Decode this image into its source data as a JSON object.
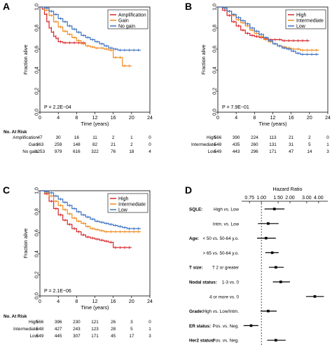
{
  "colors": {
    "red": "#d7262b",
    "orange": "#f08a1e",
    "blue": "#3f73c0",
    "black": "#000000"
  },
  "panels": [
    {
      "label": "A",
      "chart_data": {
        "type": "line",
        "xlabel": "Time (years)",
        "ylabel": "Fraction alive",
        "xlim": [
          0,
          24
        ],
        "ylim": [
          0,
          1.0
        ],
        "xticks": [
          "0",
          "4",
          "8",
          "12",
          "16",
          "20",
          "24"
        ],
        "yticks": [
          "0.0",
          "0.2",
          "0.4",
          "0.6",
          "0.8",
          "1.0"
        ],
        "legend": "top-right",
        "pvalue": "P = 2.2E−04",
        "series": [
          {
            "name": "Amplification",
            "color": "red",
            "x": [
              0,
              0.5,
              1,
              1.5,
              2,
              2.5,
              3,
              3.5,
              4,
              5,
              6,
              7,
              8,
              9,
              10
            ],
            "y": [
              1.0,
              0.98,
              0.93,
              0.86,
              0.8,
              0.76,
              0.72,
              0.7,
              0.67,
              0.66,
              0.66,
              0.66,
              0.66,
              0.66,
              0.66
            ]
          },
          {
            "name": "Gain",
            "color": "orange",
            "x": [
              0,
              1,
              2,
              3,
              4,
              5,
              6,
              7,
              8,
              9,
              10,
              11,
              12,
              13,
              14,
              15,
              16,
              17,
              18,
              19,
              20
            ],
            "y": [
              1.0,
              0.97,
              0.92,
              0.86,
              0.81,
              0.77,
              0.74,
              0.71,
              0.68,
              0.65,
              0.63,
              0.62,
              0.61,
              0.61,
              0.6,
              0.59,
              0.52,
              0.52,
              0.44,
              0.44,
              0.44
            ]
          },
          {
            "name": "No gain",
            "color": "blue",
            "x": [
              0,
              1,
              2,
              3,
              4,
              5,
              6,
              7,
              8,
              9,
              10,
              11,
              12,
              13,
              14,
              15,
              16,
              17,
              18,
              19,
              20,
              21,
              22
            ],
            "y": [
              1.0,
              0.99,
              0.96,
              0.93,
              0.89,
              0.86,
              0.82,
              0.79,
              0.76,
              0.73,
              0.71,
              0.69,
              0.67,
              0.65,
              0.63,
              0.61,
              0.6,
              0.59,
              0.59,
              0.59,
              0.59,
              0.59,
              0.59
            ]
          }
        ]
      },
      "risk": {
        "title": "No. At Risk",
        "rows": [
          {
            "label": "Amplification",
            "values": [
              "47",
              "30",
              "16",
              "11",
              "2",
              "1",
              "0"
            ]
          },
          {
            "label": "Gain",
            "values": [
              "363",
              "259",
              "148",
              "82",
              "21",
              "2",
              "0"
            ]
          },
          {
            "label": "No gain",
            "values": [
              "1253",
              "979",
              "616",
              "322",
              "76",
              "18",
              "4"
            ]
          }
        ]
      }
    },
    {
      "label": "B",
      "chart_data": {
        "type": "line",
        "xlabel": "Time (years)",
        "ylabel": "Fraction alive",
        "xlim": [
          0,
          24
        ],
        "ylim": [
          0,
          1.0
        ],
        "xticks": [
          "0",
          "4",
          "8",
          "12",
          "16",
          "20",
          "24"
        ],
        "yticks": [
          "0.0",
          "0.2",
          "0.4",
          "0.6",
          "0.8",
          "1.0"
        ],
        "legend": "top-right",
        "pvalue": "P = 7.9E−01",
        "series": [
          {
            "name": "High",
            "color": "red",
            "x": [
              0,
              1,
              2,
              3,
              4,
              5,
              6,
              7,
              8,
              9,
              10,
              11,
              12,
              13,
              14,
              15,
              16,
              17,
              18,
              19,
              20
            ],
            "y": [
              1.0,
              0.97,
              0.92,
              0.86,
              0.82,
              0.78,
              0.75,
              0.73,
              0.72,
              0.71,
              0.7,
              0.69,
              0.69,
              0.69,
              0.68,
              0.68,
              0.68,
              0.68,
              0.68,
              0.68,
              0.68
            ]
          },
          {
            "name": "Intermediate",
            "color": "orange",
            "x": [
              0,
              1,
              2,
              3,
              4,
              5,
              6,
              7,
              8,
              9,
              10,
              11,
              12,
              13,
              14,
              15,
              16,
              17,
              18,
              19,
              20,
              21,
              22
            ],
            "y": [
              1.0,
              0.99,
              0.96,
              0.92,
              0.88,
              0.85,
              0.82,
              0.78,
              0.75,
              0.72,
              0.69,
              0.67,
              0.65,
              0.63,
              0.62,
              0.61,
              0.6,
              0.6,
              0.59,
              0.59,
              0.59,
              0.59,
              0.59
            ]
          },
          {
            "name": "Low",
            "color": "blue",
            "x": [
              0,
              1,
              2,
              3,
              4,
              5,
              6,
              7,
              8,
              9,
              10,
              11,
              12,
              13,
              14,
              15,
              16,
              17,
              18,
              19,
              20,
              21,
              22
            ],
            "y": [
              1.0,
              0.99,
              0.96,
              0.93,
              0.9,
              0.87,
              0.84,
              0.8,
              0.77,
              0.74,
              0.71,
              0.68,
              0.65,
              0.63,
              0.61,
              0.6,
              0.58,
              0.56,
              0.55,
              0.55,
              0.55,
              0.55,
              0.55
            ]
          }
        ]
      },
      "risk": {
        "title": "",
        "rows": [
          {
            "label": "High",
            "values": [
              "566",
              "390",
              "224",
              "113",
              "21",
              "2",
              "0"
            ]
          },
          {
            "label": "Intermediate",
            "values": [
              "548",
              "435",
              "260",
              "131",
              "31",
              "5",
              "1"
            ]
          },
          {
            "label": "Low",
            "values": [
              "549",
              "443",
              "296",
              "171",
              "47",
              "14",
              "3"
            ]
          }
        ]
      }
    },
    {
      "label": "C",
      "chart_data": {
        "type": "line",
        "xlabel": "Time (years)",
        "ylabel": "Fraction alive",
        "xlim": [
          0,
          24
        ],
        "ylim": [
          0,
          1.0
        ],
        "xticks": [
          "0",
          "4",
          "8",
          "12",
          "16",
          "20",
          "24"
        ],
        "yticks": [
          "0.0",
          "0.2",
          "0.4",
          "0.6",
          "0.8",
          "1.0"
        ],
        "legend": "top-right",
        "pvalue": "P = 2.1E−06",
        "series": [
          {
            "name": "High",
            "color": "red",
            "x": [
              0,
              1,
              2,
              3,
              4,
              5,
              6,
              7,
              8,
              9,
              10,
              11,
              12,
              13,
              14,
              15,
              16,
              17,
              18,
              19,
              20
            ],
            "y": [
              1.0,
              0.97,
              0.9,
              0.83,
              0.77,
              0.72,
              0.68,
              0.64,
              0.61,
              0.58,
              0.56,
              0.55,
              0.54,
              0.53,
              0.52,
              0.51,
              0.46,
              0.46,
              0.46,
              0.46,
              0.46
            ]
          },
          {
            "name": "Intermediate",
            "color": "orange",
            "x": [
              0,
              1,
              2,
              3,
              4,
              5,
              6,
              7,
              8,
              9,
              10,
              11,
              12,
              13,
              14,
              15,
              16,
              17,
              18,
              19,
              20,
              21,
              22
            ],
            "y": [
              1.0,
              0.98,
              0.95,
              0.9,
              0.86,
              0.82,
              0.78,
              0.74,
              0.71,
              0.69,
              0.66,
              0.64,
              0.63,
              0.62,
              0.61,
              0.61,
              0.61,
              0.61,
              0.61,
              0.61,
              0.61,
              0.61,
              0.61
            ]
          },
          {
            "name": "Low",
            "color": "blue",
            "x": [
              0,
              1,
              2,
              3,
              4,
              5,
              6,
              7,
              8,
              9,
              10,
              11,
              12,
              13,
              14,
              15,
              16,
              17,
              18,
              19,
              20,
              21,
              22
            ],
            "y": [
              1.0,
              0.99,
              0.98,
              0.95,
              0.92,
              0.89,
              0.86,
              0.83,
              0.8,
              0.77,
              0.75,
              0.73,
              0.71,
              0.7,
              0.69,
              0.68,
              0.67,
              0.66,
              0.65,
              0.64,
              0.64,
              0.64,
              0.64
            ]
          }
        ]
      },
      "risk": {
        "title": "No. At Risk",
        "rows": [
          {
            "label": "High",
            "values": [
              "566",
              "396",
              "230",
              "121",
              "26",
              "3",
              "0"
            ]
          },
          {
            "label": "Intermediate",
            "values": [
              "548",
              "427",
              "243",
              "123",
              "28",
              "5",
              "1"
            ]
          },
          {
            "label": "Low",
            "values": [
              "549",
              "445",
              "307",
              "171",
              "45",
              "17",
              "3"
            ]
          }
        ]
      }
    }
  ],
  "forest": {
    "label": "D",
    "chart_data": {
      "type": "forest",
      "title": "Hazard Ratio",
      "scale": "log",
      "xticks": [
        {
          "value": 0.75,
          "label": "0.75"
        },
        {
          "value": 1.0,
          "label": "1.00"
        },
        {
          "value": 1.5,
          "label": "1.50"
        },
        {
          "value": 2.0,
          "label": "2.00"
        },
        {
          "value": 3.0,
          "label": "3.00"
        },
        {
          "value": 4.0,
          "label": "4.00"
        }
      ],
      "reference": 1.0,
      "rows": [
        {
          "group": "SQLE:",
          "comparison": "High vs. Low",
          "hr": 1.37,
          "lo": 1.08,
          "hi": 1.75
        },
        {
          "group": "",
          "comparison": "Intm. vs. Low",
          "hr": 1.18,
          "lo": 0.92,
          "hi": 1.52
        },
        {
          "group": "Age:",
          "comparison": "< 50 vs. 50-64 y.o.",
          "hr": 1.12,
          "lo": 0.9,
          "hi": 1.42
        },
        {
          "group": "",
          "comparison": "> 65 vs. 50-64 y.o.",
          "hr": 1.3,
          "lo": 1.1,
          "hi": 1.52
        },
        {
          "group": "T size:",
          "comparison": "T 2 or greater",
          "hr": 1.42,
          "lo": 1.2,
          "hi": 1.72
        },
        {
          "group": "Nodal status:",
          "comparison": "1-3 vs. 0",
          "hr": 1.6,
          "lo": 1.32,
          "hi": 2.0
        },
        {
          "group": "",
          "comparison": "4 or more vs. 0",
          "hr": 3.65,
          "lo": 2.95,
          "hi": 4.55
        },
        {
          "group": "Grade:",
          "comparison": "High vs. Low/Intm.",
          "hr": 1.18,
          "lo": 0.98,
          "hi": 1.45
        },
        {
          "group": "ER status:",
          "comparison": "Pos. vs. Neg.",
          "hr": 0.78,
          "lo": 0.65,
          "hi": 0.93
        },
        {
          "group": "Her2 status:",
          "comparison": "Pos. vs. Neg.",
          "hr": 1.42,
          "lo": 1.15,
          "hi": 1.8
        }
      ]
    }
  }
}
